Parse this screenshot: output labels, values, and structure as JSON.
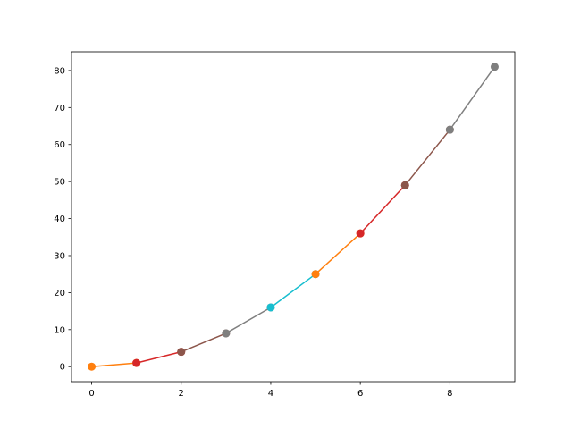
{
  "chart_data": {
    "type": "line",
    "title": "",
    "xlabel": "",
    "ylabel": "",
    "x": [
      0,
      1,
      2,
      3,
      4,
      5,
      6,
      7,
      8,
      9
    ],
    "y": [
      0,
      1,
      4,
      9,
      16,
      25,
      36,
      49,
      64,
      81
    ],
    "segment_colors": [
      "#ff7f0e",
      "#d62728",
      "#8c564b",
      "#7f7f7f",
      "#17becf",
      "#ff7f0e",
      "#d62728",
      "#8c564b",
      "#7f7f7f"
    ],
    "marker": "circle",
    "xlim": [
      -0.45,
      9.45
    ],
    "ylim": [
      -4.05,
      85.05
    ],
    "xticks": [
      0,
      2,
      4,
      6,
      8
    ],
    "yticks": [
      0,
      10,
      20,
      30,
      40,
      50,
      60,
      70,
      80
    ],
    "grid": false,
    "legend": "none"
  }
}
